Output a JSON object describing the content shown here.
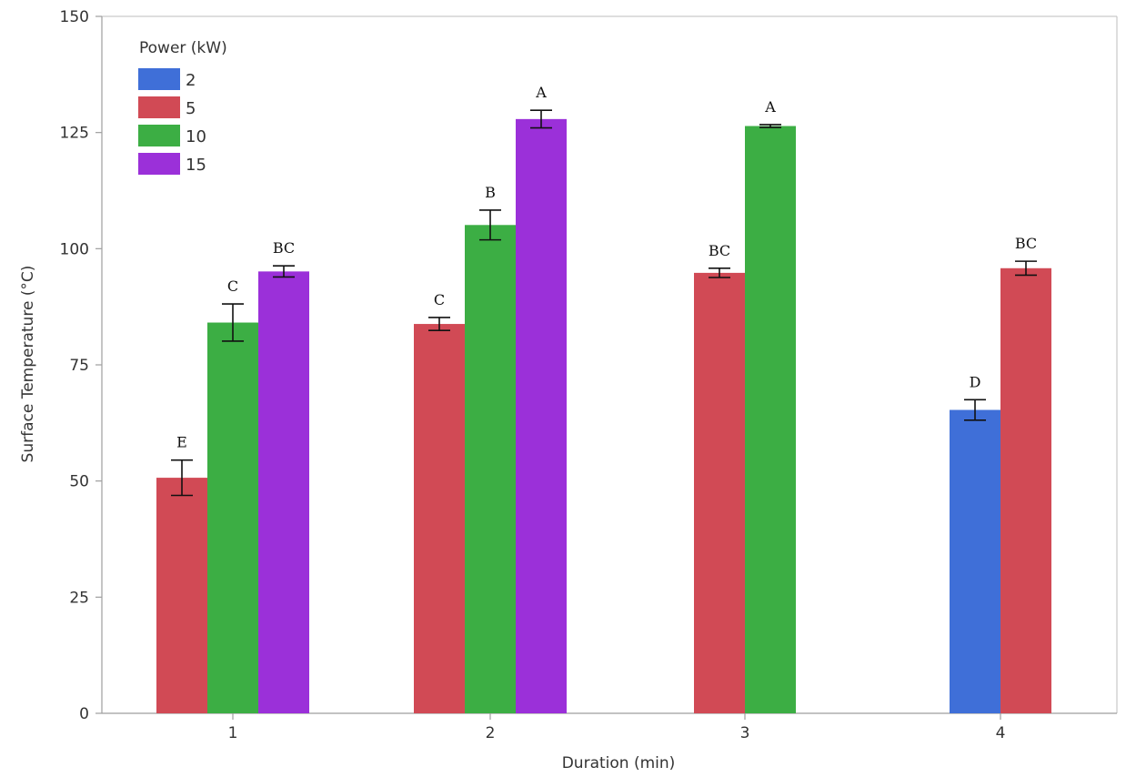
{
  "chart_data": {
    "type": "bar",
    "xlabel": "Duration (min)",
    "ylabel": "Surface Temperature (°C)",
    "ylim": [
      0,
      150
    ],
    "yticks": [
      0,
      25,
      50,
      75,
      100,
      125,
      150
    ],
    "categories": [
      "1",
      "2",
      "3",
      "4"
    ],
    "legend": {
      "title": "Power (kW)",
      "placement": "top-left"
    },
    "series": [
      {
        "name": "2",
        "color": "#3f6fd8",
        "values": [
          null,
          null,
          null,
          65.3
        ],
        "errors": [
          null,
          null,
          null,
          2.2
        ],
        "labels": [
          null,
          null,
          null,
          "D"
        ]
      },
      {
        "name": "5",
        "color": "#d14a55",
        "values": [
          50.7,
          83.8,
          94.8,
          95.8
        ],
        "errors": [
          3.8,
          1.4,
          1.0,
          1.5
        ],
        "labels": [
          "E",
          "C",
          "BC",
          "BC"
        ]
      },
      {
        "name": "10",
        "color": "#3cae44",
        "values": [
          84.1,
          105.1,
          126.4,
          null
        ],
        "errors": [
          4.0,
          3.2,
          0.3,
          null
        ],
        "labels": [
          "C",
          "B",
          "A",
          null
        ]
      },
      {
        "name": "15",
        "color": "#9b30d9",
        "values": [
          95.1,
          127.9,
          null,
          null
        ],
        "errors": [
          1.2,
          1.9,
          null,
          null
        ],
        "labels": [
          "BC",
          "A",
          null,
          null
        ]
      }
    ],
    "grid": false
  }
}
